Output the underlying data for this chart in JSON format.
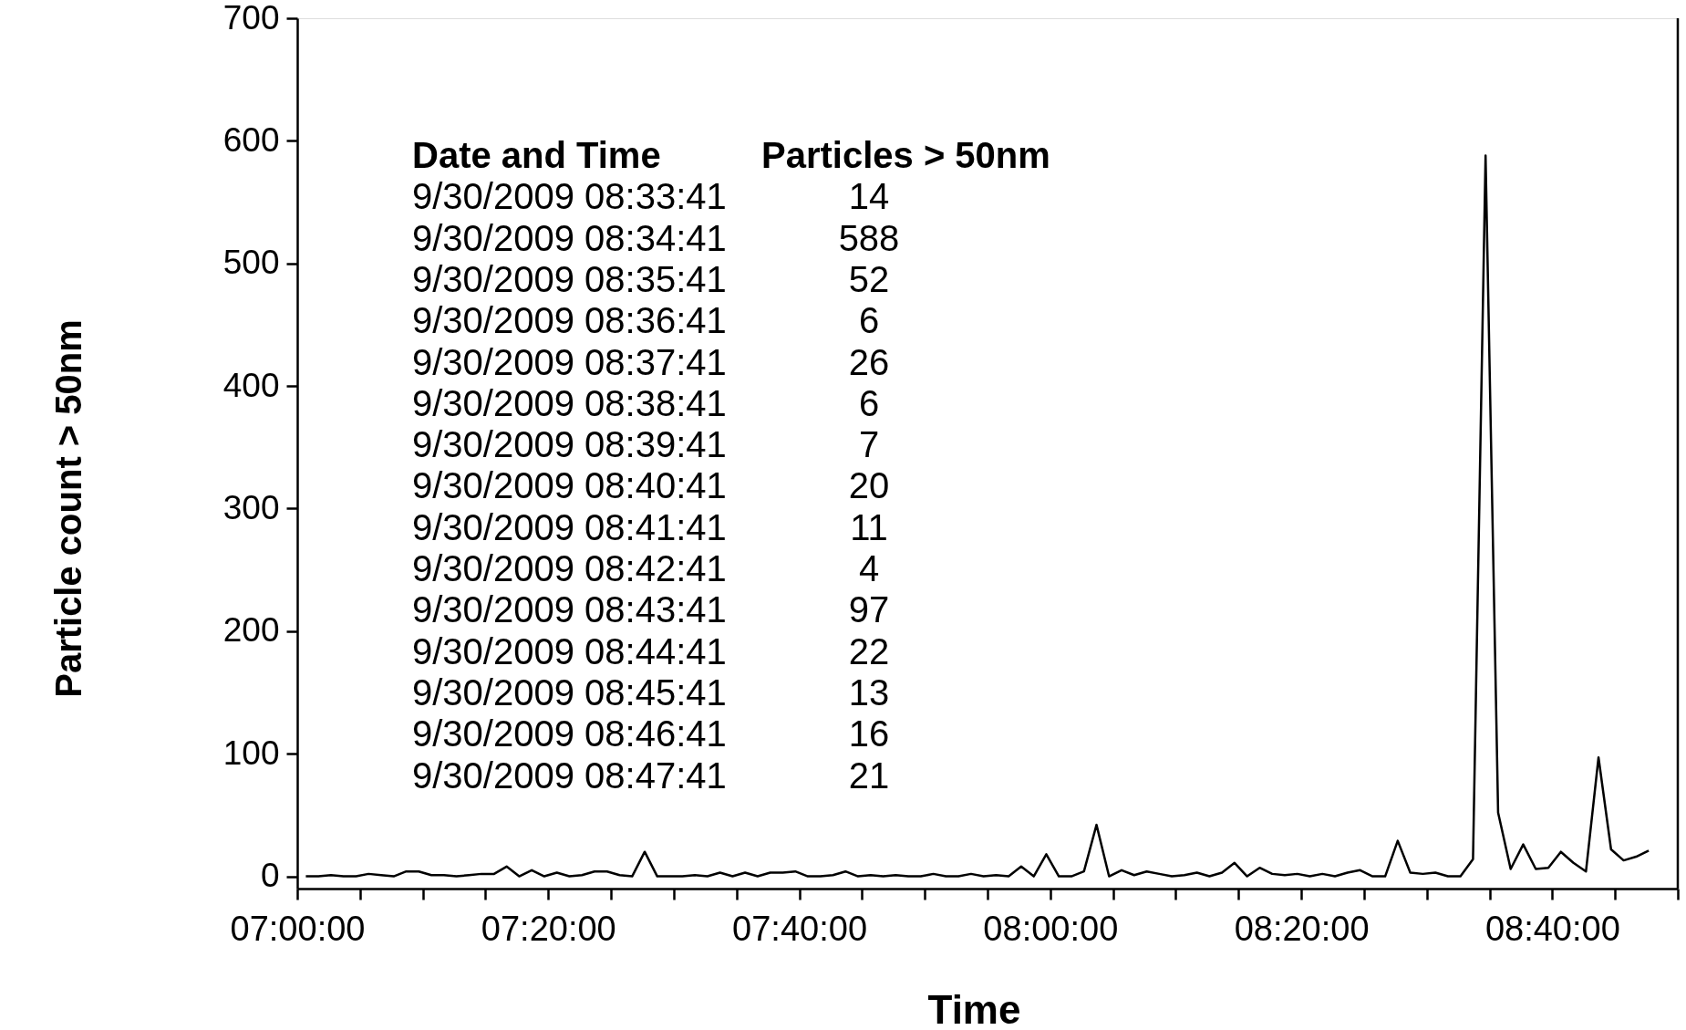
{
  "chart_data": {
    "type": "line",
    "xlabel": "Time",
    "ylabel": "Particle count > 50nm",
    "x": [
      "2009-09-30T07:00:41",
      "2009-09-30T07:01:41",
      "2009-09-30T07:02:41",
      "2009-09-30T07:03:41",
      "2009-09-30T07:04:41",
      "2009-09-30T07:05:41",
      "2009-09-30T07:06:41",
      "2009-09-30T07:07:41",
      "2009-09-30T07:08:41",
      "2009-09-30T07:09:41",
      "2009-09-30T07:10:41",
      "2009-09-30T07:11:41",
      "2009-09-30T07:12:41",
      "2009-09-30T07:13:41",
      "2009-09-30T07:14:41",
      "2009-09-30T07:15:41",
      "2009-09-30T07:16:41",
      "2009-09-30T07:17:41",
      "2009-09-30T07:18:41",
      "2009-09-30T07:19:41",
      "2009-09-30T07:20:41",
      "2009-09-30T07:21:41",
      "2009-09-30T07:22:41",
      "2009-09-30T07:23:41",
      "2009-09-30T07:24:41",
      "2009-09-30T07:25:41",
      "2009-09-30T07:26:41",
      "2009-09-30T07:27:41",
      "2009-09-30T07:28:41",
      "2009-09-30T07:29:41",
      "2009-09-30T07:30:41",
      "2009-09-30T07:31:41",
      "2009-09-30T07:32:41",
      "2009-09-30T07:33:41",
      "2009-09-30T07:34:41",
      "2009-09-30T07:35:41",
      "2009-09-30T07:36:41",
      "2009-09-30T07:37:41",
      "2009-09-30T07:38:41",
      "2009-09-30T07:39:41",
      "2009-09-30T07:40:41",
      "2009-09-30T07:41:41",
      "2009-09-30T07:42:41",
      "2009-09-30T07:43:41",
      "2009-09-30T07:44:41",
      "2009-09-30T07:45:41",
      "2009-09-30T07:46:41",
      "2009-09-30T07:47:41",
      "2009-09-30T07:48:41",
      "2009-09-30T07:49:41",
      "2009-09-30T07:50:41",
      "2009-09-30T07:51:41",
      "2009-09-30T07:52:41",
      "2009-09-30T07:53:41",
      "2009-09-30T07:54:41",
      "2009-09-30T07:55:41",
      "2009-09-30T07:56:41",
      "2009-09-30T07:57:41",
      "2009-09-30T07:58:41",
      "2009-09-30T07:59:41",
      "2009-09-30T08:00:41",
      "2009-09-30T08:01:41",
      "2009-09-30T08:02:41",
      "2009-09-30T08:03:41",
      "2009-09-30T08:04:41",
      "2009-09-30T08:05:41",
      "2009-09-30T08:06:41",
      "2009-09-30T08:07:41",
      "2009-09-30T08:08:41",
      "2009-09-30T08:09:41",
      "2009-09-30T08:10:41",
      "2009-09-30T08:11:41",
      "2009-09-30T08:12:41",
      "2009-09-30T08:13:41",
      "2009-09-30T08:14:41",
      "2009-09-30T08:15:41",
      "2009-09-30T08:16:41",
      "2009-09-30T08:17:41",
      "2009-09-30T08:18:41",
      "2009-09-30T08:19:41",
      "2009-09-30T08:20:41",
      "2009-09-30T08:21:41",
      "2009-09-30T08:22:41",
      "2009-09-30T08:23:41",
      "2009-09-30T08:24:41",
      "2009-09-30T08:25:41",
      "2009-09-30T08:26:41",
      "2009-09-30T08:27:41",
      "2009-09-30T08:28:41",
      "2009-09-30T08:29:41",
      "2009-09-30T08:30:41",
      "2009-09-30T08:31:41",
      "2009-09-30T08:32:41",
      "2009-09-30T08:33:41",
      "2009-09-30T08:34:41",
      "2009-09-30T08:35:41",
      "2009-09-30T08:36:41",
      "2009-09-30T08:37:41",
      "2009-09-30T08:38:41",
      "2009-09-30T08:39:41",
      "2009-09-30T08:40:41",
      "2009-09-30T08:41:41",
      "2009-09-30T08:42:41",
      "2009-09-30T08:43:41",
      "2009-09-30T08:44:41",
      "2009-09-30T08:45:41",
      "2009-09-30T08:46:41",
      "2009-09-30T08:47:41"
    ],
    "series": [
      {
        "color": "#000000",
        "values": [
          0,
          0,
          1,
          0,
          0,
          2,
          1,
          0,
          4,
          4,
          1,
          1,
          0,
          1,
          2,
          2,
          8,
          0,
          5,
          0,
          3,
          0,
          1,
          4,
          4,
          1,
          0,
          20,
          0,
          0,
          0,
          1,
          0,
          3,
          0,
          3,
          0,
          3,
          3,
          4,
          0,
          0,
          1,
          4,
          0,
          1,
          0,
          1,
          0,
          0,
          2,
          0,
          0,
          2,
          0,
          1,
          0,
          8,
          0,
          18,
          0,
          0,
          4,
          42,
          0,
          5,
          1,
          4,
          2,
          0,
          1,
          3,
          0,
          3,
          11,
          0,
          7,
          2,
          1,
          2,
          0,
          2,
          0,
          3,
          5,
          0,
          0,
          29,
          3,
          2,
          3,
          0,
          0,
          14,
          588,
          52,
          6,
          26,
          6,
          7,
          20,
          11,
          4,
          97,
          22,
          13,
          16,
          21
        ]
      }
    ],
    "xlim": [
      "2009-09-30T07:00",
      "2009-09-30T08:50"
    ],
    "xticks": [
      {
        "value": "2009-09-30T07:00",
        "label": "07:00:00"
      },
      {
        "value": "2009-09-30T07:05",
        "label": null
      },
      {
        "value": "2009-09-30T07:10",
        "label": null
      },
      {
        "value": "2009-09-30T07:15",
        "label": null
      },
      {
        "value": "2009-09-30T07:20",
        "label": "07:20:00"
      },
      {
        "value": "2009-09-30T07:25",
        "label": null
      },
      {
        "value": "2009-09-30T07:30",
        "label": null
      },
      {
        "value": "2009-09-30T07:35",
        "label": null
      },
      {
        "value": "2009-09-30T07:40",
        "label": "07:40:00"
      },
      {
        "value": "2009-09-30T07:45",
        "label": null
      },
      {
        "value": "2009-09-30T07:50",
        "label": null
      },
      {
        "value": "2009-09-30T07:55",
        "label": null
      },
      {
        "value": "2009-09-30T08:00",
        "label": "08:00:00"
      },
      {
        "value": "2009-09-30T08:05",
        "label": null
      },
      {
        "value": "2009-09-30T08:10",
        "label": null
      },
      {
        "value": "2009-09-30T08:15",
        "label": null
      },
      {
        "value": "2009-09-30T08:20",
        "label": "08:20:00"
      },
      {
        "value": "2009-09-30T08:25",
        "label": null
      },
      {
        "value": "2009-09-30T08:30",
        "label": null
      },
      {
        "value": "2009-09-30T08:35",
        "label": null
      },
      {
        "value": "2009-09-30T08:40",
        "label": "08:40:00"
      },
      {
        "value": "2009-09-30T08:45",
        "label": null
      },
      {
        "value": "2009-09-30T08:50",
        "label": null
      }
    ],
    "ylim": [
      -10,
      700
    ],
    "yticks": [
      0,
      100,
      200,
      300,
      400,
      500,
      600,
      700
    ],
    "grid": false,
    "marker": "none",
    "line_style": "solid",
    "annotations": [
      "Date and Time",
      "Particles > 50nm",
      "9/30/2009 08:33:41",
      "14",
      "9/30/2009 08:34:41",
      "588",
      "9/30/2009 08:35:41",
      "52",
      "9/30/2009 08:36:41",
      "6",
      "9/30/2009 08:37:41",
      "26",
      "9/30/2009 08:38:41",
      "6",
      "9/30/2009 08:39:41",
      "7",
      "9/30/2009 08:40:41",
      "20",
      "9/30/2009 08:41:41",
      "11",
      "9/30/2009 08:42:41",
      "4",
      "9/30/2009 08:43:41",
      "97",
      "9/30/2009 08:44:41",
      "22",
      "9/30/2009 08:45:41",
      "13",
      "9/30/2009 08:46:41",
      "16",
      "9/30/2009 08:47:41",
      "21"
    ]
  }
}
